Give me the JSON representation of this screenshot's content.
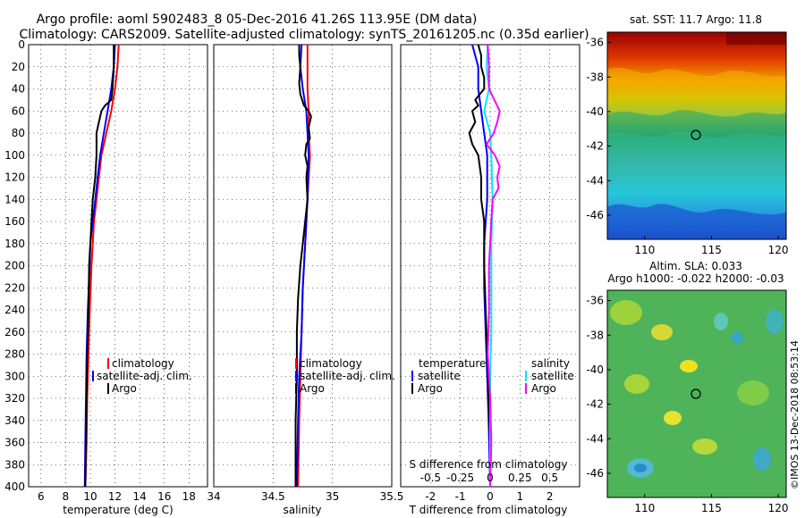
{
  "colors": {
    "climatology": "#ff0000",
    "satellite": "#0000ff",
    "argo": "#000000",
    "salinity_satellite": "#00e5ff",
    "salinity_argo": "#ff00ff"
  },
  "chart_data": {
    "type": "line",
    "title_line1": "Argo profile: aoml 5902483_8 05-Dec-2016 41.26S 113.95E (DM data)",
    "title_line2": "Climatology: CARS2009. Satellite-adjusted climatology: synTS_20161205.nc (0.35d earlier)",
    "depth_ticks": [
      "0",
      "20",
      "40",
      "60",
      "80",
      "100",
      "120",
      "140",
      "160",
      "180",
      "200",
      "220",
      "240",
      "260",
      "280",
      "300",
      "320",
      "340",
      "360",
      "380",
      "400"
    ],
    "ylim": [
      0,
      400
    ],
    "panels": [
      {
        "id": "temperature",
        "xlabel": "temperature (deg C)",
        "xlim": [
          5,
          19.5
        ],
        "xticks": [
          6,
          8,
          10,
          12,
          14,
          16,
          18
        ],
        "xtick_labels": [
          "6",
          "8",
          "10",
          "12",
          "14",
          "16",
          "18"
        ],
        "legend": [
          "climatology",
          "satellite-adj. clim.",
          "Argo"
        ],
        "series": [
          {
            "name": "climatology",
            "color_key": "climatology",
            "depth": [
              0,
              20,
              40,
              60,
              80,
              100,
              120,
              140,
              160,
              180,
              200,
              240,
              280,
              320,
              360,
              400
            ],
            "values": [
              12.3,
              12.2,
              12.0,
              11.7,
              11.3,
              10.9,
              10.7,
              10.5,
              10.3,
              10.2,
              10.1,
              9.95,
              9.85,
              9.75,
              9.7,
              9.6
            ]
          },
          {
            "name": "satellite",
            "color_key": "satellite",
            "depth": [
              0,
              20,
              40,
              60,
              80,
              100,
              120,
              140,
              160,
              180,
              200,
              240,
              280,
              320,
              360,
              400
            ],
            "values": [
              12.0,
              11.9,
              11.7,
              11.4,
              11.1,
              10.8,
              10.6,
              10.4,
              10.2,
              10.0,
              9.95,
              9.8,
              9.7,
              9.65,
              9.6,
              9.55
            ]
          },
          {
            "name": "Argo",
            "color_key": "argo",
            "depth": [
              0,
              10,
              20,
              30,
              40,
              50,
              55,
              60,
              70,
              80,
              90,
              100,
              120,
              140,
              160,
              180,
              200,
              240,
              280,
              320,
              360,
              400
            ],
            "values": [
              11.9,
              11.9,
              11.9,
              11.85,
              11.8,
              11.7,
              11.2,
              10.9,
              10.7,
              10.5,
              10.5,
              10.5,
              10.4,
              10.2,
              10.1,
              10.0,
              9.9,
              9.85,
              9.75,
              9.7,
              9.65,
              9.6
            ]
          }
        ]
      },
      {
        "id": "salinity",
        "xlabel": "salinity",
        "xlim": [
          34,
          35.5
        ],
        "xticks": [
          34,
          34.5,
          35,
          35.5
        ],
        "xtick_labels": [
          "34",
          "34.5",
          "35",
          "35.5"
        ],
        "legend": [
          "climatology",
          "satellite-adj. clim.",
          "Argo"
        ],
        "series": [
          {
            "name": "climatology",
            "color_key": "climatology",
            "depth": [
              0,
              20,
              40,
              60,
              80,
              100,
              140,
              180,
              220,
              260,
              300,
              340,
              400
            ],
            "values": [
              34.79,
              34.79,
              34.79,
              34.8,
              34.8,
              34.81,
              34.79,
              34.77,
              34.75,
              34.74,
              34.73,
              34.72,
              34.71
            ]
          },
          {
            "name": "satellite",
            "color_key": "satellite",
            "depth": [
              0,
              20,
              40,
              60,
              80,
              100,
              140,
              180,
              220,
              260,
              300,
              340,
              400
            ],
            "values": [
              34.74,
              34.73,
              34.75,
              34.78,
              34.79,
              34.8,
              34.79,
              34.77,
              34.75,
              34.74,
              34.72,
              34.71,
              34.7
            ]
          },
          {
            "name": "Argo",
            "color_key": "argo",
            "depth": [
              0,
              10,
              20,
              35,
              45,
              55,
              60,
              65,
              75,
              85,
              90,
              100,
              110,
              120,
              140,
              160,
              180,
              200,
              230,
              260,
              300,
              340,
              380,
              400
            ],
            "values": [
              34.72,
              34.72,
              34.73,
              34.72,
              34.73,
              34.76,
              34.8,
              34.82,
              34.8,
              34.81,
              34.78,
              34.77,
              34.79,
              34.78,
              34.79,
              34.77,
              34.75,
              34.73,
              34.71,
              34.7,
              34.7,
              34.69,
              34.69,
              34.69
            ]
          }
        ]
      },
      {
        "id": "difference",
        "xlabel": "T difference from climatology",
        "xlim": [
          -3,
          3
        ],
        "xticks": [
          -2,
          -1,
          0,
          1,
          2
        ],
        "xtick_labels": [
          "-2",
          "-1",
          "0",
          "1",
          "2"
        ],
        "s_axis_title": "S difference from climatology",
        "s_ticks": [
          "-0.5",
          "-0.25",
          "0",
          "0.25",
          "0.5"
        ],
        "legend_left_title": "temperature",
        "legend_right_title": "salinity",
        "legend_left": [
          "satellite",
          "Argo"
        ],
        "legend_right": [
          "satellite",
          "Argo"
        ],
        "series": [
          {
            "name": "T satellite",
            "color_key": "satellite",
            "depth": [
              0,
              20,
              40,
              60,
              80,
              100,
              140,
              180,
              220,
              260,
              300,
              340,
              400
            ],
            "values": [
              -0.6,
              -0.4,
              -0.4,
              -0.3,
              -0.2,
              -0.1,
              -0.1,
              -0.2,
              -0.2,
              -0.15,
              -0.1,
              -0.05,
              0
            ]
          },
          {
            "name": "T Argo",
            "color_key": "argo",
            "depth": [
              0,
              10,
              20,
              30,
              40,
              50,
              55,
              60,
              70,
              80,
              90,
              100,
              120,
              140,
              160,
              180,
              200,
              240,
              280,
              320,
              360,
              400
            ],
            "values": [
              -0.4,
              -0.3,
              -0.3,
              -0.2,
              -0.2,
              -0.5,
              -0.4,
              -0.6,
              -0.5,
              -0.7,
              -0.6,
              -0.4,
              -0.3,
              -0.3,
              -0.2,
              -0.2,
              -0.2,
              -0.15,
              -0.1,
              -0.05,
              0,
              0
            ]
          },
          {
            "name": "S satellite",
            "color_key": "salinity_satellite",
            "depth": [
              0,
              20,
              40,
              60,
              80,
              100,
              140,
              180,
              220,
              260,
              300,
              340,
              400
            ],
            "values": [
              -0.02,
              -0.03,
              -0.01,
              -0.05,
              0,
              0.01,
              0.02,
              0.01,
              0.01,
              0.01,
              0,
              0,
              0
            ]
          },
          {
            "name": "S Argo",
            "color_key": "salinity_argo",
            "depth": [
              0,
              20,
              40,
              60,
              70,
              80,
              90,
              100,
              110,
              120,
              130,
              140,
              160,
              180,
              200,
              240,
              280,
              320,
              360,
              400
            ],
            "values": [
              -0.02,
              -0.01,
              -0.01,
              0.08,
              0.06,
              0.03,
              -0.03,
              0.04,
              0.08,
              0.06,
              0.07,
              0.02,
              0.01,
              0,
              -0.01,
              -0.01,
              -0.02,
              0,
              0.01,
              0
            ]
          }
        ]
      }
    ],
    "maps": [
      {
        "id": "sst",
        "title": "sat. SST: 11.7 Argo: 11.8",
        "lon_ticks": [
          "110",
          "115",
          "120"
        ],
        "lat_ticks": [
          "-36",
          "-38",
          "-40",
          "-42",
          "-44",
          "-46"
        ],
        "marker": {
          "lon": 113.95,
          "lat": -41.26
        }
      },
      {
        "id": "sla",
        "title_line1": "Altim. SLA: 0.033",
        "title_line2": "Argo h1000: -0.022 h2000: -0.03",
        "lon_ticks": [
          "110",
          "115",
          "120"
        ],
        "lat_ticks": [
          "-36",
          "-38",
          "-40",
          "-42",
          "-44",
          "-46"
        ],
        "marker": {
          "lon": 113.95,
          "lat": -41.26
        }
      }
    ],
    "credit": "©IMOS 13-Dec-2018 08:53:14"
  }
}
